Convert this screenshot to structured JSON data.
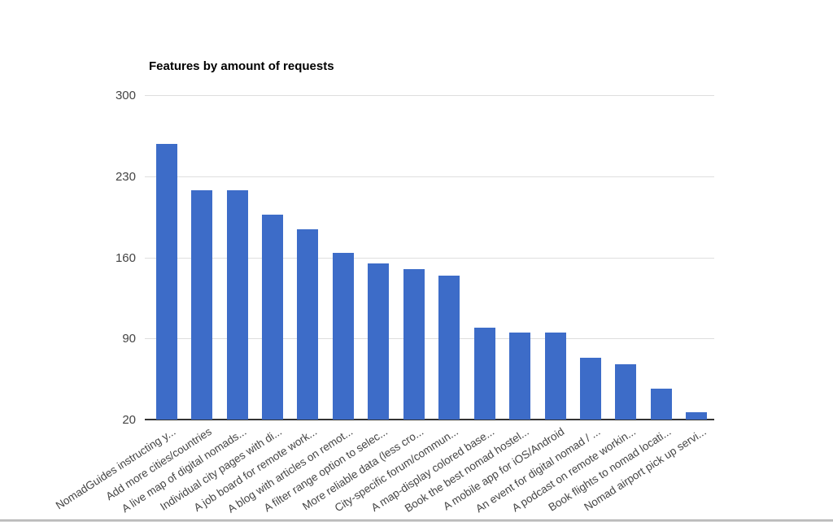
{
  "chart_data": {
    "type": "bar",
    "title": "Features by amount of requests",
    "categories": [
      "NomadGuides instructing y...",
      "Add more cities/countries",
      "A live map of digital nomads...",
      "Individual city pages with di...",
      "A job board for remote work...",
      "A blog with articles on remot...",
      "A filter range option to selec...",
      "More reliable data (less cro...",
      "City-specific forum/commun...",
      "A map-display colored base...",
      "Book the best nomad hostel...",
      "A mobile app for iOS/Android",
      "An event for digital nomad / ...",
      "A podcast on remote workin...",
      "Book flights to nomad locati...",
      "Nomad airport pick up servi..."
    ],
    "values": [
      258,
      218,
      218,
      197,
      184,
      164,
      155,
      150,
      144,
      99,
      95,
      95,
      73,
      68,
      47,
      26
    ],
    "xlabel": "",
    "ylabel": "",
    "ylim": [
      20,
      300
    ],
    "yticks": [
      20,
      90,
      160,
      230,
      300
    ],
    "grid": true,
    "legend": "none",
    "bar_color": "#3d6cc8",
    "gridline_color": "#dedede",
    "baseline_color": "#333333",
    "axis_label_color": "#444444",
    "title_color": "#000000"
  }
}
